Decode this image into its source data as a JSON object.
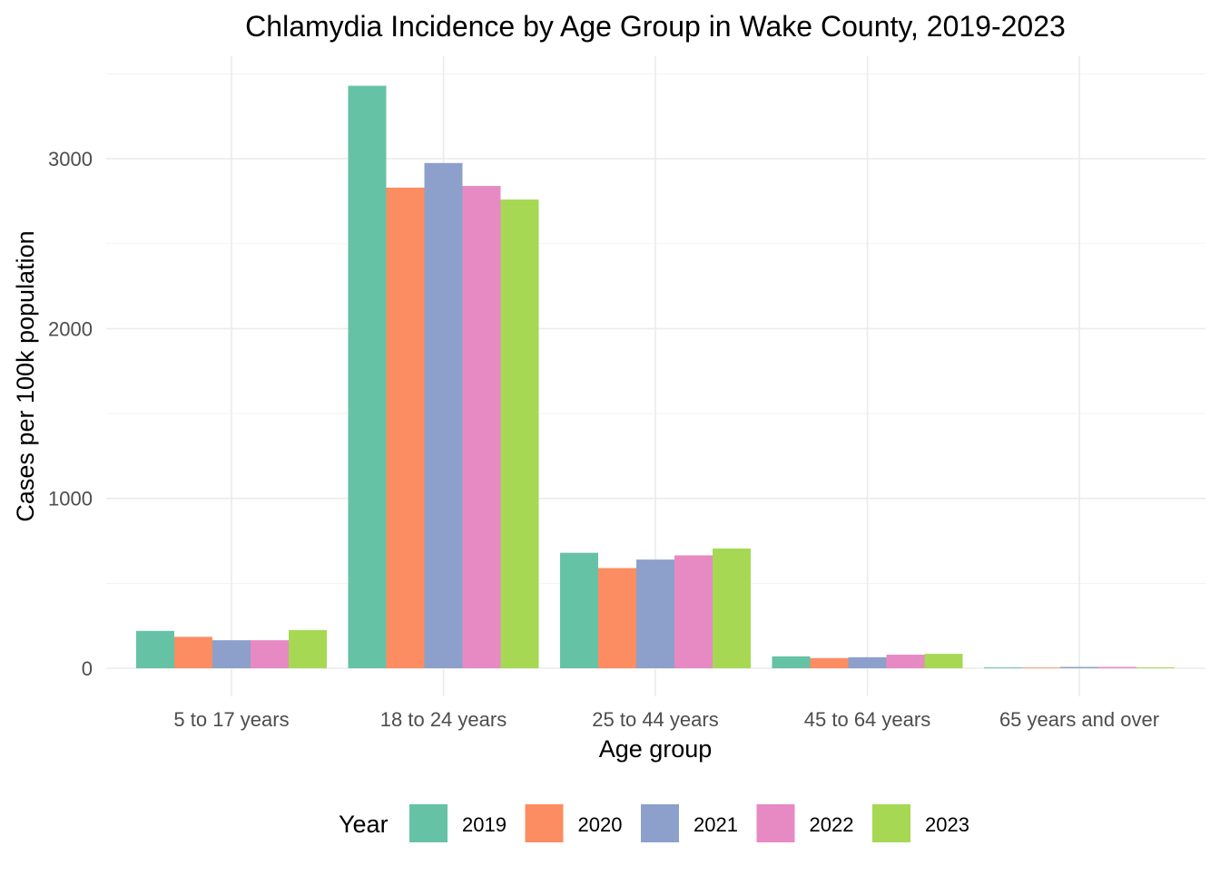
{
  "chart_data": {
    "type": "bar",
    "title": "Chlamydia Incidence by Age Group in Wake County, 2019-2023",
    "xlabel": "Age group",
    "ylabel": "Cases per 100k population",
    "categories": [
      "5 to 17 years",
      "18 to 24 years",
      "25 to 44 years",
      "45 to 64 years",
      "65 years and over"
    ],
    "ylim": [
      0,
      3600
    ],
    "yticks": [
      0,
      1000,
      2000,
      3000
    ],
    "ytick_labels": [
      "0",
      "1000",
      "2000",
      "3000"
    ],
    "grid": true,
    "legend": {
      "title": "Year",
      "position": "bottom"
    },
    "series": [
      {
        "name": "2019",
        "color": "#66c2a5",
        "values": [
          220,
          3430,
          680,
          70,
          5
        ]
      },
      {
        "name": "2020",
        "color": "#fc8d62",
        "values": [
          185,
          2830,
          590,
          60,
          4
        ]
      },
      {
        "name": "2021",
        "color": "#8da0cb",
        "values": [
          165,
          2975,
          640,
          65,
          8
        ]
      },
      {
        "name": "2022",
        "color": "#e78ac3",
        "values": [
          165,
          2840,
          665,
          80,
          8
        ]
      },
      {
        "name": "2023",
        "color": "#a6d854",
        "values": [
          225,
          2760,
          705,
          85,
          5
        ]
      }
    ]
  }
}
